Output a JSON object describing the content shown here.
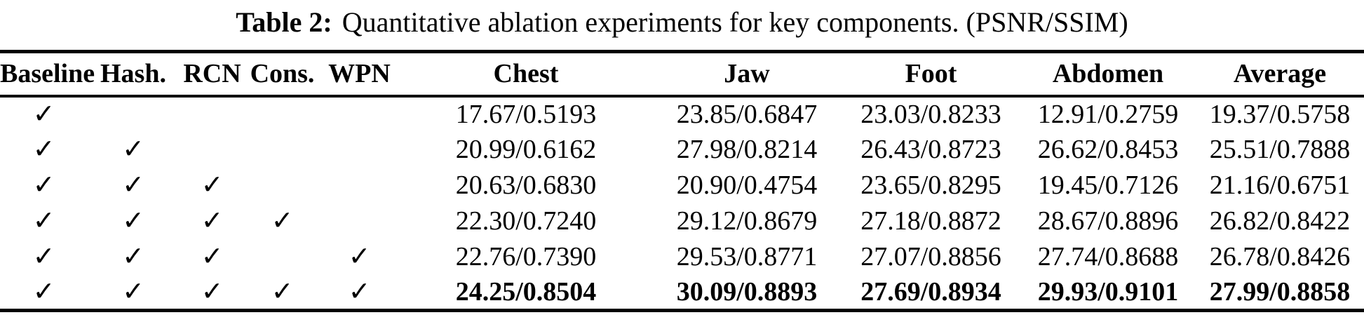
{
  "caption": {
    "label": "Table 2:",
    "text": "Quantitative ablation experiments for key components. (PSNR/SSIM)"
  },
  "colors": {
    "background": "#ffffff",
    "text": "#000000",
    "rule": "#000000"
  },
  "table": {
    "checkmark_glyph": "✓",
    "columns": [
      "Baseline",
      "Hash.",
      "RCN",
      "Cons.",
      "WPN",
      "Chest",
      "Jaw",
      "Foot",
      "Abdomen",
      "Average"
    ],
    "rows": [
      {
        "checks": [
          true,
          false,
          false,
          false,
          false
        ],
        "values": [
          "17.67/0.5193",
          "23.85/0.6847",
          "23.03/0.8233",
          "12.91/0.2759",
          "19.37/0.5758"
        ],
        "bold": false
      },
      {
        "checks": [
          true,
          true,
          false,
          false,
          false
        ],
        "values": [
          "20.99/0.6162",
          "27.98/0.8214",
          "26.43/0.8723",
          "26.62/0.8453",
          "25.51/0.7888"
        ],
        "bold": false
      },
      {
        "checks": [
          true,
          true,
          true,
          false,
          false
        ],
        "values": [
          "20.63/0.6830",
          "20.90/0.4754",
          "23.65/0.8295",
          "19.45/0.7126",
          "21.16/0.6751"
        ],
        "bold": false
      },
      {
        "checks": [
          true,
          true,
          true,
          true,
          false
        ],
        "values": [
          "22.30/0.7240",
          "29.12/0.8679",
          "27.18/0.8872",
          "28.67/0.8896",
          "26.82/0.8422"
        ],
        "bold": false
      },
      {
        "checks": [
          true,
          true,
          true,
          false,
          true
        ],
        "values": [
          "22.76/0.7390",
          "29.53/0.8771",
          "27.07/0.8856",
          "27.74/0.8688",
          "26.78/0.8426"
        ],
        "bold": false
      },
      {
        "checks": [
          true,
          true,
          true,
          true,
          true
        ],
        "values": [
          "24.25/0.8504",
          "30.09/0.8893",
          "27.69/0.8934",
          "29.93/0.9101",
          "27.99/0.8858"
        ],
        "bold": true
      }
    ]
  }
}
